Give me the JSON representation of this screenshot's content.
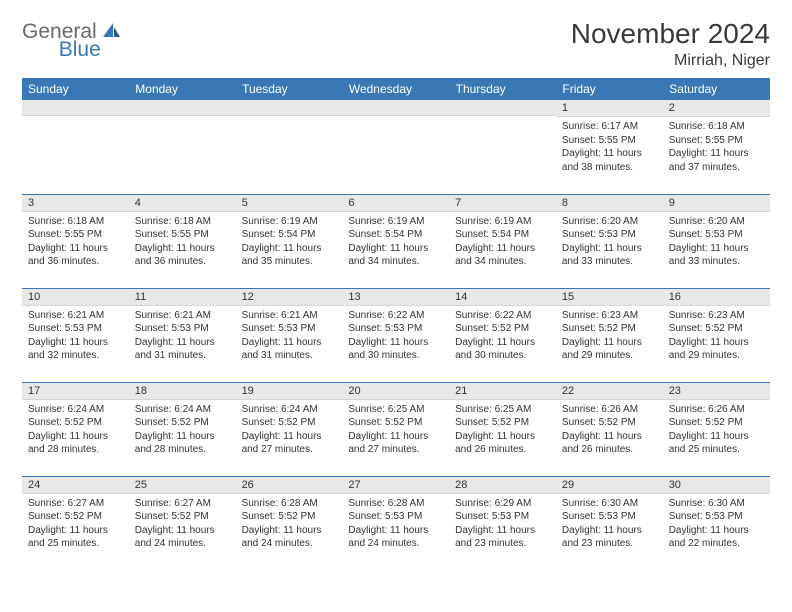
{
  "logo": {
    "text1": "General",
    "text2": "Blue"
  },
  "header": {
    "title": "November 2024",
    "location": "Mirriah, Niger"
  },
  "colors": {
    "header_bg": "#3a78b5",
    "header_text": "#ffffff",
    "daynum_bg": "#e8e8e8",
    "border": "#3a78b5",
    "logo_gray": "#6a6a6a",
    "logo_blue": "#3a78b5",
    "body_text": "#333333",
    "page_bg": "#ffffff"
  },
  "weekdays": [
    "Sunday",
    "Monday",
    "Tuesday",
    "Wednesday",
    "Thursday",
    "Friday",
    "Saturday"
  ],
  "weeks": [
    [
      {
        "num": "",
        "sunrise": "",
        "sunset": "",
        "daylight": ""
      },
      {
        "num": "",
        "sunrise": "",
        "sunset": "",
        "daylight": ""
      },
      {
        "num": "",
        "sunrise": "",
        "sunset": "",
        "daylight": ""
      },
      {
        "num": "",
        "sunrise": "",
        "sunset": "",
        "daylight": ""
      },
      {
        "num": "",
        "sunrise": "",
        "sunset": "",
        "daylight": ""
      },
      {
        "num": "1",
        "sunrise": "Sunrise: 6:17 AM",
        "sunset": "Sunset: 5:55 PM",
        "daylight": "Daylight: 11 hours and 38 minutes."
      },
      {
        "num": "2",
        "sunrise": "Sunrise: 6:18 AM",
        "sunset": "Sunset: 5:55 PM",
        "daylight": "Daylight: 11 hours and 37 minutes."
      }
    ],
    [
      {
        "num": "3",
        "sunrise": "Sunrise: 6:18 AM",
        "sunset": "Sunset: 5:55 PM",
        "daylight": "Daylight: 11 hours and 36 minutes."
      },
      {
        "num": "4",
        "sunrise": "Sunrise: 6:18 AM",
        "sunset": "Sunset: 5:55 PM",
        "daylight": "Daylight: 11 hours and 36 minutes."
      },
      {
        "num": "5",
        "sunrise": "Sunrise: 6:19 AM",
        "sunset": "Sunset: 5:54 PM",
        "daylight": "Daylight: 11 hours and 35 minutes."
      },
      {
        "num": "6",
        "sunrise": "Sunrise: 6:19 AM",
        "sunset": "Sunset: 5:54 PM",
        "daylight": "Daylight: 11 hours and 34 minutes."
      },
      {
        "num": "7",
        "sunrise": "Sunrise: 6:19 AM",
        "sunset": "Sunset: 5:54 PM",
        "daylight": "Daylight: 11 hours and 34 minutes."
      },
      {
        "num": "8",
        "sunrise": "Sunrise: 6:20 AM",
        "sunset": "Sunset: 5:53 PM",
        "daylight": "Daylight: 11 hours and 33 minutes."
      },
      {
        "num": "9",
        "sunrise": "Sunrise: 6:20 AM",
        "sunset": "Sunset: 5:53 PM",
        "daylight": "Daylight: 11 hours and 33 minutes."
      }
    ],
    [
      {
        "num": "10",
        "sunrise": "Sunrise: 6:21 AM",
        "sunset": "Sunset: 5:53 PM",
        "daylight": "Daylight: 11 hours and 32 minutes."
      },
      {
        "num": "11",
        "sunrise": "Sunrise: 6:21 AM",
        "sunset": "Sunset: 5:53 PM",
        "daylight": "Daylight: 11 hours and 31 minutes."
      },
      {
        "num": "12",
        "sunrise": "Sunrise: 6:21 AM",
        "sunset": "Sunset: 5:53 PM",
        "daylight": "Daylight: 11 hours and 31 minutes."
      },
      {
        "num": "13",
        "sunrise": "Sunrise: 6:22 AM",
        "sunset": "Sunset: 5:53 PM",
        "daylight": "Daylight: 11 hours and 30 minutes."
      },
      {
        "num": "14",
        "sunrise": "Sunrise: 6:22 AM",
        "sunset": "Sunset: 5:52 PM",
        "daylight": "Daylight: 11 hours and 30 minutes."
      },
      {
        "num": "15",
        "sunrise": "Sunrise: 6:23 AM",
        "sunset": "Sunset: 5:52 PM",
        "daylight": "Daylight: 11 hours and 29 minutes."
      },
      {
        "num": "16",
        "sunrise": "Sunrise: 6:23 AM",
        "sunset": "Sunset: 5:52 PM",
        "daylight": "Daylight: 11 hours and 29 minutes."
      }
    ],
    [
      {
        "num": "17",
        "sunrise": "Sunrise: 6:24 AM",
        "sunset": "Sunset: 5:52 PM",
        "daylight": "Daylight: 11 hours and 28 minutes."
      },
      {
        "num": "18",
        "sunrise": "Sunrise: 6:24 AM",
        "sunset": "Sunset: 5:52 PM",
        "daylight": "Daylight: 11 hours and 28 minutes."
      },
      {
        "num": "19",
        "sunrise": "Sunrise: 6:24 AM",
        "sunset": "Sunset: 5:52 PM",
        "daylight": "Daylight: 11 hours and 27 minutes."
      },
      {
        "num": "20",
        "sunrise": "Sunrise: 6:25 AM",
        "sunset": "Sunset: 5:52 PM",
        "daylight": "Daylight: 11 hours and 27 minutes."
      },
      {
        "num": "21",
        "sunrise": "Sunrise: 6:25 AM",
        "sunset": "Sunset: 5:52 PM",
        "daylight": "Daylight: 11 hours and 26 minutes."
      },
      {
        "num": "22",
        "sunrise": "Sunrise: 6:26 AM",
        "sunset": "Sunset: 5:52 PM",
        "daylight": "Daylight: 11 hours and 26 minutes."
      },
      {
        "num": "23",
        "sunrise": "Sunrise: 6:26 AM",
        "sunset": "Sunset: 5:52 PM",
        "daylight": "Daylight: 11 hours and 25 minutes."
      }
    ],
    [
      {
        "num": "24",
        "sunrise": "Sunrise: 6:27 AM",
        "sunset": "Sunset: 5:52 PM",
        "daylight": "Daylight: 11 hours and 25 minutes."
      },
      {
        "num": "25",
        "sunrise": "Sunrise: 6:27 AM",
        "sunset": "Sunset: 5:52 PM",
        "daylight": "Daylight: 11 hours and 24 minutes."
      },
      {
        "num": "26",
        "sunrise": "Sunrise: 6:28 AM",
        "sunset": "Sunset: 5:52 PM",
        "daylight": "Daylight: 11 hours and 24 minutes."
      },
      {
        "num": "27",
        "sunrise": "Sunrise: 6:28 AM",
        "sunset": "Sunset: 5:53 PM",
        "daylight": "Daylight: 11 hours and 24 minutes."
      },
      {
        "num": "28",
        "sunrise": "Sunrise: 6:29 AM",
        "sunset": "Sunset: 5:53 PM",
        "daylight": "Daylight: 11 hours and 23 minutes."
      },
      {
        "num": "29",
        "sunrise": "Sunrise: 6:30 AM",
        "sunset": "Sunset: 5:53 PM",
        "daylight": "Daylight: 11 hours and 23 minutes."
      },
      {
        "num": "30",
        "sunrise": "Sunrise: 6:30 AM",
        "sunset": "Sunset: 5:53 PM",
        "daylight": "Daylight: 11 hours and 22 minutes."
      }
    ]
  ]
}
